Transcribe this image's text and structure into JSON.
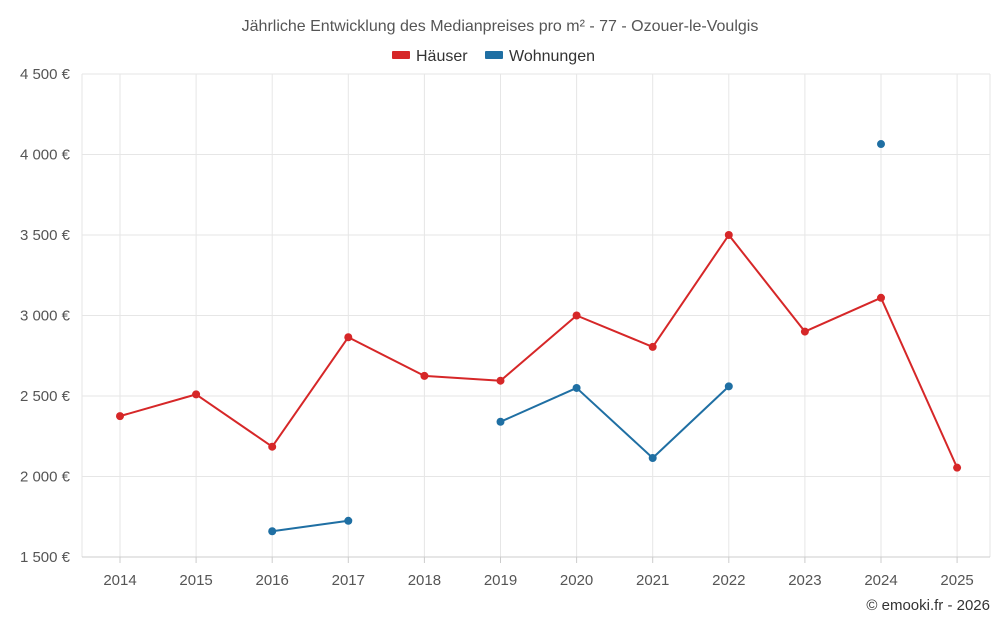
{
  "chart_data": {
    "type": "line",
    "title": "Jährliche Entwicklung des Medianpreises pro m² - 77 - Ozouer-le-Voulgis",
    "categories": [
      "2014",
      "2015",
      "2016",
      "2017",
      "2018",
      "2019",
      "2020",
      "2021",
      "2022",
      "2023",
      "2024",
      "2025"
    ],
    "y_ticks": [
      1500,
      2000,
      2500,
      3000,
      3500,
      4000,
      4500
    ],
    "y_tick_labels": [
      "1 500 €",
      "2 000 €",
      "2 500 €",
      "3 000 €",
      "3 500 €",
      "4 000 €",
      "4 500 €"
    ],
    "ylim": [
      1500,
      4500
    ],
    "grid": true,
    "legend_position": "top-center",
    "series": [
      {
        "name": "Häuser",
        "color": "#d62728",
        "values": [
          2375,
          2510,
          2185,
          2865,
          2625,
          2595,
          3000,
          2805,
          3500,
          2900,
          3110,
          2055
        ]
      },
      {
        "name": "Wohnungen",
        "color": "#1f6fa3",
        "values": [
          null,
          null,
          1660,
          1725,
          null,
          2340,
          2550,
          2115,
          2560,
          null,
          4065,
          null
        ]
      }
    ]
  },
  "footer": {
    "copyright": "© emooki.fr - 2026"
  }
}
